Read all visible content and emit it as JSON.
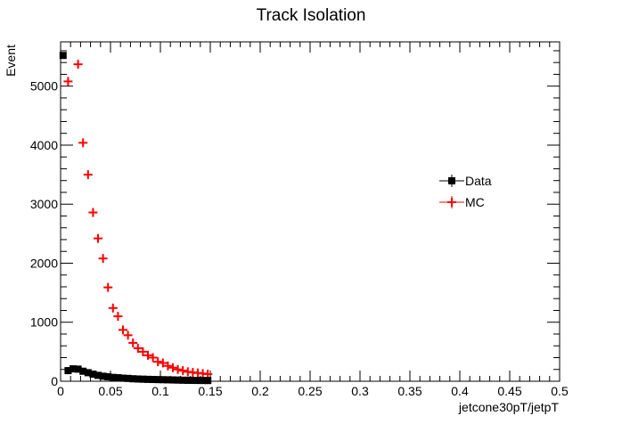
{
  "chart_data": {
    "type": "scatter",
    "title": "Track Isolation",
    "xlabel": "jetcone30pT/jetpT",
    "ylabel": "Event",
    "xlim": [
      0,
      0.5
    ],
    "ylim": [
      0,
      5750
    ],
    "x_ticks": [
      0,
      0.05,
      0.1,
      0.15,
      0.2,
      0.25,
      0.3,
      0.35,
      0.4,
      0.45,
      0.5
    ],
    "x_tick_labels": [
      "0",
      "0.05",
      "0.1",
      "0.15",
      "0.2",
      "0.25",
      "0.3",
      "0.35",
      "0.4",
      "0.45",
      "0.5"
    ],
    "y_ticks": [
      0,
      1000,
      2000,
      3000,
      4000,
      5000
    ],
    "y_tick_labels": [
      "0",
      "1000",
      "2000",
      "3000",
      "4000",
      "5000"
    ],
    "grid": false,
    "legend_position": "right",
    "bin_width": 0.005,
    "series": [
      {
        "name": "Data",
        "marker": "square",
        "color": "#000000",
        "x": [
          0.0025,
          0.0075,
          0.0125,
          0.0175,
          0.0225,
          0.0275,
          0.0325,
          0.0375,
          0.0425,
          0.0475,
          0.0525,
          0.0575,
          0.0625,
          0.0675,
          0.0725,
          0.0775,
          0.0825,
          0.0875,
          0.0925,
          0.0975,
          0.1025,
          0.1075,
          0.1125,
          0.1175,
          0.1225,
          0.1275,
          0.1325,
          0.1375,
          0.1425,
          0.1475
        ],
        "y": [
          5520,
          180,
          210,
          205,
          170,
          145,
          120,
          100,
          85,
          75,
          65,
          60,
          52,
          48,
          42,
          38,
          35,
          32,
          30,
          28,
          26,
          24,
          22,
          20,
          18,
          16,
          15,
          14,
          13,
          12
        ]
      },
      {
        "name": "MC",
        "marker": "cross",
        "color": "#ff0000",
        "x": [
          0.0025,
          0.0075,
          0.0125,
          0.0175,
          0.0225,
          0.0275,
          0.0325,
          0.0375,
          0.0425,
          0.0475,
          0.0525,
          0.0575,
          0.0625,
          0.0675,
          0.0725,
          0.0775,
          0.0825,
          0.0875,
          0.0925,
          0.0975,
          0.1025,
          0.1075,
          0.1125,
          0.1175,
          0.1225,
          0.1275,
          0.1325,
          0.1375,
          0.1425,
          0.1475
        ],
        "y": [
          0,
          5080,
          0,
          5370,
          4040,
          3500,
          2860,
          2420,
          2080,
          1590,
          1240,
          1100,
          870,
          780,
          650,
          560,
          500,
          440,
          400,
          330,
          310,
          260,
          230,
          200,
          180,
          160,
          150,
          140,
          130,
          120
        ]
      }
    ]
  }
}
